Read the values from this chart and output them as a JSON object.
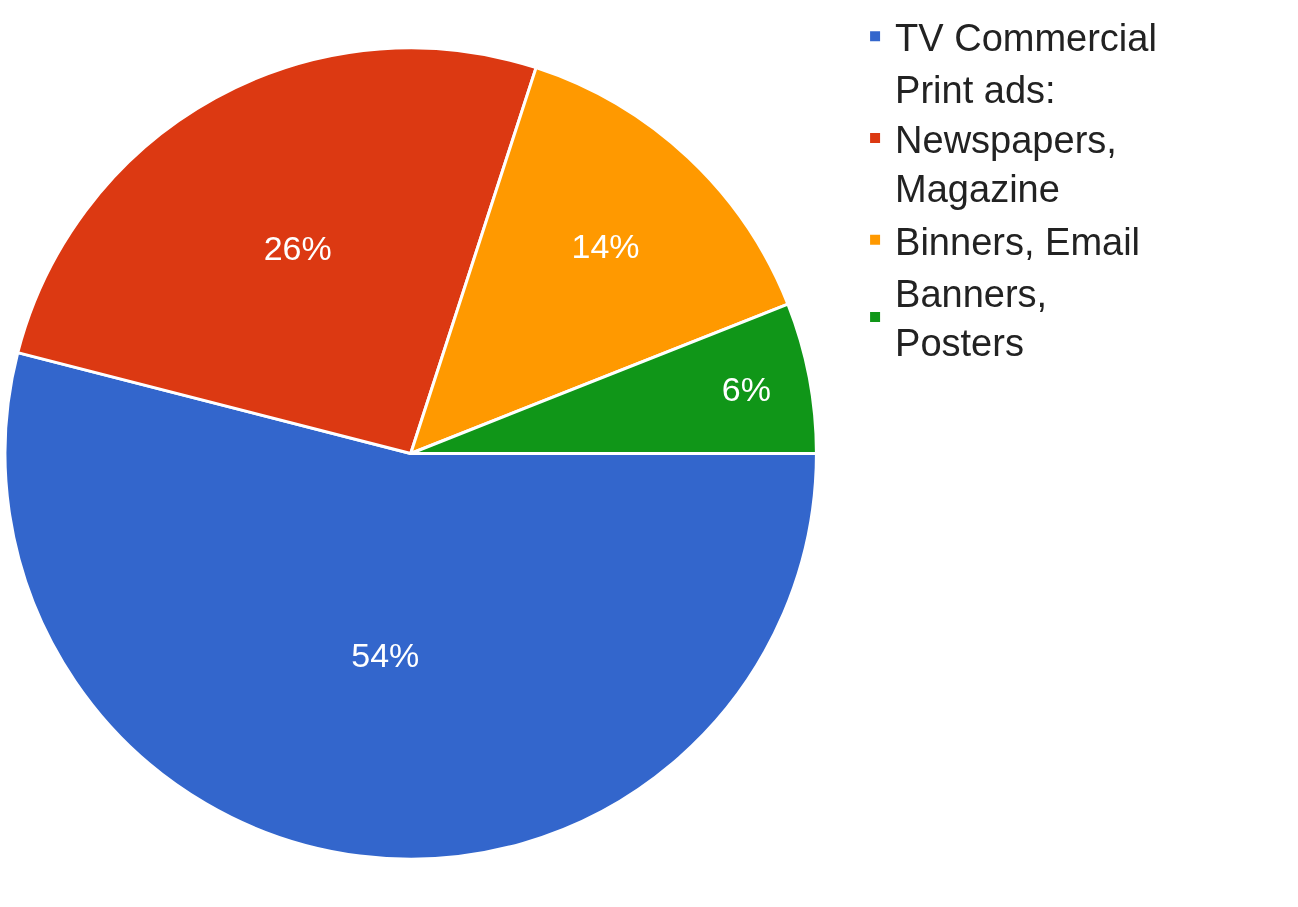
{
  "chart_data": {
    "type": "pie",
    "categories": [
      "TV Commercial",
      "Print ads: Newspapers, Magazine",
      "Binners, Email",
      "Banners, Posters"
    ],
    "values": [
      54,
      26,
      14,
      6
    ],
    "value_labels": [
      "54%",
      "26%",
      "14%",
      "6%"
    ],
    "colors": [
      "#3366cc",
      "#dc3912",
      "#ff9900",
      "#109618"
    ],
    "legend": "top right"
  }
}
